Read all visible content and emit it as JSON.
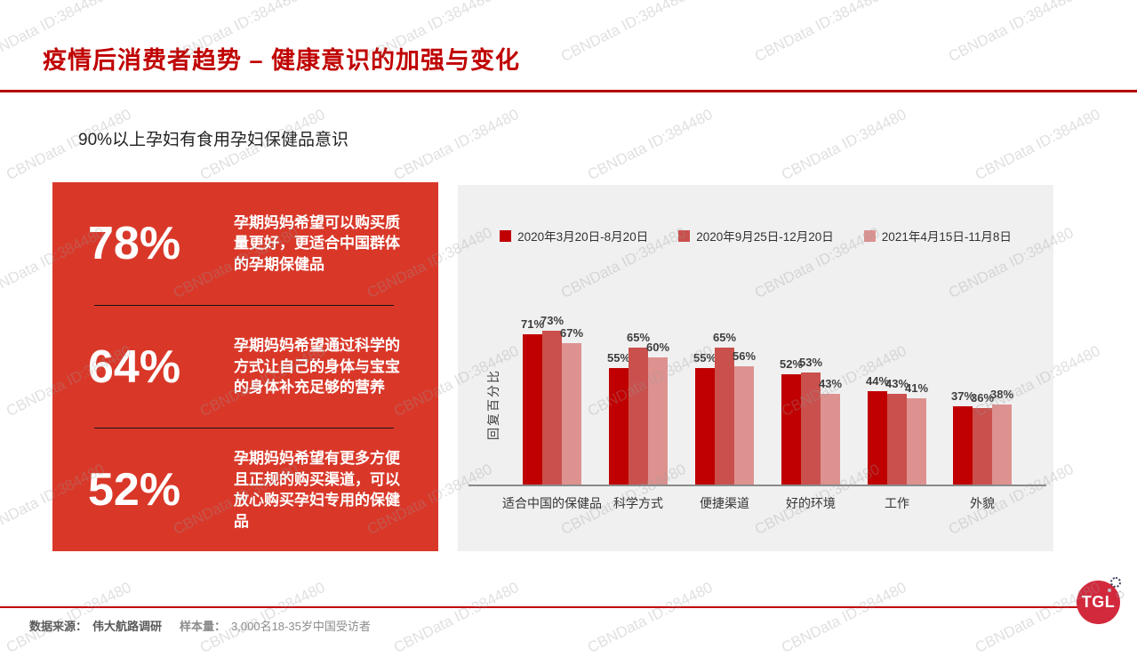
{
  "watermark": {
    "text": "CBNData ID:384480"
  },
  "header": {
    "title": "疫情后消费者趋势 – 健康意识的加强与变化"
  },
  "subtitle": "90%以上孕妇有食用孕妇保健品意识",
  "stats": [
    {
      "value": "78%",
      "desc": "孕期妈妈希望可以购买质量更好，更适合中国群体的孕期保健品"
    },
    {
      "value": "64%",
      "desc": "孕期妈妈希望通过科学的方式让自己的身体与宝宝的身体补充足够的营养"
    },
    {
      "value": "52%",
      "desc": "孕期妈妈希望有更多方便且正规的购买渠道，可以放心购买孕妇专用的保健品"
    }
  ],
  "chart_data": {
    "type": "bar",
    "categories": [
      "适合中国的保健品",
      "科学方式",
      "便捷渠道",
      "好的环境",
      "工作",
      "外貌"
    ],
    "series": [
      {
        "name": "2020年3月20日-8月20日",
        "color": "#c00000",
        "values": [
          71,
          55,
          55,
          52,
          44,
          37
        ]
      },
      {
        "name": "2020年9月25日-12月20日",
        "color": "#c9504c",
        "values": [
          73,
          65,
          65,
          53,
          43,
          36
        ]
      },
      {
        "name": "2021年4月15日-11月8日",
        "color": "#dd9290",
        "values": [
          67,
          60,
          56,
          43,
          41,
          38
        ]
      }
    ],
    "title": "",
    "xlabel": "",
    "ylabel": "回复百分比",
    "value_suffix": "%",
    "ylim": [
      0,
      80
    ],
    "grid": false,
    "legend_position": "top",
    "data_labels": true
  },
  "footer": {
    "source_label": "数据来源：",
    "source_value": "伟大航路调研",
    "sample_label": "样本量：",
    "sample_value": "3,000名18-35岁中国受访者",
    "logo_text": "TGL"
  },
  "colors": {
    "title_red": "#c00000",
    "stats_box_red": "#d93829",
    "chart_background": "#f0f0f0",
    "logo_red": "#d3293d"
  }
}
